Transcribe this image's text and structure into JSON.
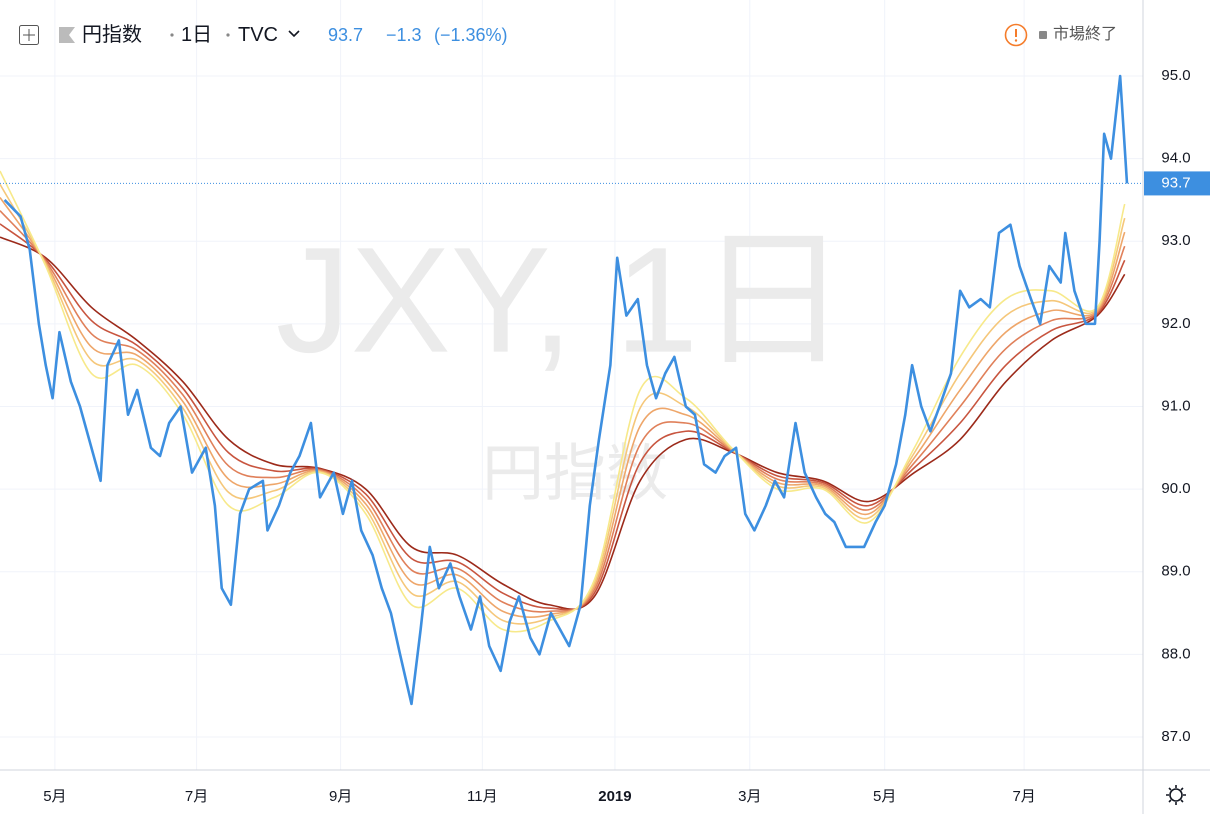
{
  "header": {
    "symbol": "円指数",
    "interval": "1日",
    "source": "TVC",
    "change": "−1.3",
    "change_pct": "(−1.36%)",
    "status": "市場終了"
  },
  "watermark": {
    "line1": "JXY, 1日",
    "line2": "円指数"
  },
  "chart_data": {
    "type": "line",
    "xlim": [
      0,
      500
    ],
    "ylim": [
      86.6,
      95.92
    ],
    "xticks": [
      {
        "value": 24,
        "label": "5月"
      },
      {
        "value": 86,
        "label": "7月"
      },
      {
        "value": 149,
        "label": "9月"
      },
      {
        "value": 211,
        "label": "11月"
      },
      {
        "value": 269,
        "label": "2019"
      },
      {
        "value": 328,
        "label": "3月"
      },
      {
        "value": 387,
        "label": "5月"
      },
      {
        "value": 448,
        "label": "7月"
      }
    ],
    "yticks": [
      {
        "value": 87,
        "label": "87.0"
      },
      {
        "value": 88,
        "label": "88.0"
      },
      {
        "value": 89,
        "label": "89.0"
      },
      {
        "value": 90,
        "label": "90.0"
      },
      {
        "value": 91,
        "label": "91.0"
      },
      {
        "value": 92,
        "label": "92.0"
      },
      {
        "value": 93,
        "label": "93.0"
      },
      {
        "value": 94,
        "label": "94.0"
      },
      {
        "value": 95,
        "label": "95.0"
      }
    ],
    "grid": true,
    "price_line": true,
    "series": [
      {
        "color": "#3d8fe0",
        "x": [
          2,
          9,
          13,
          17,
          20,
          23,
          26,
          31,
          35,
          39,
          44,
          47,
          52,
          56,
          60,
          66,
          70,
          74,
          79,
          84,
          90,
          94,
          97,
          101,
          105,
          109,
          115,
          117,
          122,
          127,
          131,
          136,
          140,
          146,
          150,
          154,
          158,
          163,
          167,
          171,
          175,
          180,
          184,
          188,
          192,
          197,
          201,
          206,
          210,
          214,
          219,
          223,
          227,
          232,
          236,
          241,
          245,
          249,
          254,
          258,
          262,
          267,
          270,
          274,
          279,
          283,
          287,
          291,
          295,
          300,
          304,
          308,
          313,
          317,
          322,
          326,
          330,
          335,
          339,
          343,
          348,
          352,
          357,
          361,
          365,
          370,
          374,
          378,
          383,
          387,
          392,
          396,
          399,
          403,
          407,
          411,
          416,
          420,
          424,
          429,
          433,
          437,
          442,
          446,
          451,
          455,
          459,
          464,
          466,
          470,
          475,
          479,
          481,
          483,
          486,
          488,
          490,
          493
        ],
        "values": [
          93.5,
          93.3,
          92.9,
          92.0,
          91.5,
          91.1,
          91.9,
          91.3,
          91.0,
          90.6,
          90.1,
          91.5,
          91.8,
          90.9,
          91.2,
          90.5,
          90.4,
          90.8,
          91.0,
          90.2,
          90.5,
          89.8,
          88.8,
          88.6,
          89.7,
          90.0,
          90.1,
          89.5,
          89.8,
          90.2,
          90.4,
          90.8,
          89.9,
          90.2,
          89.7,
          90.1,
          89.5,
          89.2,
          88.8,
          88.5,
          88.0,
          87.4,
          88.3,
          89.3,
          88.8,
          89.1,
          88.7,
          88.3,
          88.7,
          88.1,
          87.8,
          88.4,
          88.7,
          88.2,
          88.0,
          88.5,
          88.3,
          88.1,
          88.6,
          89.8,
          90.6,
          91.5,
          92.8,
          92.1,
          92.3,
          91.5,
          91.1,
          91.4,
          91.6,
          91.0,
          90.9,
          90.3,
          90.2,
          90.4,
          90.5,
          89.7,
          89.5,
          89.8,
          90.1,
          89.9,
          90.8,
          90.2,
          89.9,
          89.7,
          89.6,
          89.3,
          89.3,
          89.3,
          89.6,
          89.8,
          90.3,
          90.9,
          91.5,
          91.0,
          90.7,
          91.0,
          91.4,
          92.4,
          92.2,
          92.3,
          92.2,
          93.1,
          93.2,
          92.7,
          92.3,
          92.0,
          92.7,
          92.5,
          93.1,
          92.4,
          92.0,
          92.0,
          93.0,
          94.3,
          94.0,
          94.5,
          95.0,
          93.7
        ]
      },
      {
        "color": "#9c2a1a",
        "x": [
          0,
          20,
          40,
          60,
          80,
          100,
          120,
          140,
          160,
          180,
          200,
          220,
          240,
          260,
          280,
          300,
          320,
          340,
          360,
          380,
          400,
          420,
          440,
          460,
          480,
          492
        ],
        "values": [
          93.05,
          92.8,
          92.2,
          91.8,
          91.3,
          90.6,
          90.3,
          90.25,
          90.0,
          89.3,
          89.2,
          88.85,
          88.6,
          88.7,
          90.1,
          90.6,
          90.45,
          90.2,
          90.1,
          89.85,
          90.2,
          90.6,
          91.3,
          91.8,
          92.1,
          92.6
        ]
      },
      {
        "color": "#c8553f",
        "x": [
          0,
          20,
          40,
          60,
          80,
          100,
          120,
          140,
          160,
          180,
          200,
          220,
          240,
          260,
          280,
          300,
          320,
          340,
          360,
          380,
          400,
          420,
          440,
          460,
          480,
          492
        ],
        "values": [
          93.21,
          92.78,
          92.04,
          91.74,
          91.22,
          90.44,
          90.22,
          90.24,
          89.94,
          89.16,
          89.12,
          88.74,
          88.56,
          88.74,
          90.32,
          90.7,
          90.46,
          90.16,
          90.08,
          89.8,
          90.26,
          90.8,
          91.5,
          91.92,
          92.12,
          92.77
        ]
      },
      {
        "color": "#e0805a",
        "x": [
          0,
          20,
          40,
          60,
          80,
          100,
          120,
          140,
          160,
          180,
          200,
          220,
          240,
          260,
          280,
          300,
          320,
          340,
          360,
          380,
          400,
          420,
          440,
          460,
          480,
          492
        ],
        "values": [
          93.37,
          92.76,
          91.88,
          91.68,
          91.14,
          90.28,
          90.14,
          90.23,
          89.88,
          89.02,
          89.04,
          88.63,
          88.52,
          88.78,
          90.54,
          90.8,
          90.47,
          90.12,
          90.06,
          89.75,
          90.32,
          91.0,
          91.7,
          92.04,
          92.14,
          92.94
        ]
      },
      {
        "color": "#eea66a",
        "x": [
          0,
          20,
          40,
          60,
          80,
          100,
          120,
          140,
          160,
          180,
          200,
          220,
          240,
          260,
          280,
          300,
          320,
          340,
          360,
          380,
          400,
          420,
          440,
          460,
          480,
          492
        ],
        "values": [
          93.53,
          92.74,
          91.72,
          91.62,
          91.06,
          90.12,
          90.06,
          90.22,
          89.82,
          88.88,
          88.96,
          88.52,
          88.48,
          88.82,
          90.76,
          90.9,
          90.48,
          90.08,
          90.04,
          89.7,
          90.38,
          91.2,
          91.9,
          92.16,
          92.16,
          93.11
        ]
      },
      {
        "color": "#f5c77a",
        "x": [
          0,
          20,
          40,
          60,
          80,
          100,
          120,
          140,
          160,
          180,
          200,
          220,
          240,
          260,
          280,
          300,
          320,
          340,
          360,
          380,
          400,
          420,
          440,
          460,
          480,
          492
        ],
        "values": [
          93.69,
          92.72,
          91.56,
          91.56,
          90.98,
          89.96,
          89.98,
          90.21,
          89.76,
          88.74,
          88.88,
          88.41,
          88.44,
          88.86,
          90.98,
          91.0,
          90.49,
          90.04,
          90.02,
          89.65,
          90.44,
          91.4,
          92.1,
          92.28,
          92.18,
          93.28
        ]
      },
      {
        "color": "#f7e98a",
        "x": [
          0,
          20,
          40,
          60,
          80,
          100,
          120,
          140,
          160,
          180,
          200,
          220,
          240,
          260,
          280,
          300,
          320,
          340,
          360,
          380,
          400,
          420,
          440,
          460,
          480,
          492
        ],
        "values": [
          93.85,
          92.7,
          91.4,
          91.5,
          90.9,
          89.8,
          89.9,
          90.2,
          89.7,
          88.6,
          88.8,
          88.3,
          88.4,
          88.9,
          91.2,
          91.1,
          90.5,
          90.0,
          90.0,
          89.6,
          90.5,
          91.6,
          92.3,
          92.4,
          92.2,
          93.45
        ]
      }
    ]
  }
}
